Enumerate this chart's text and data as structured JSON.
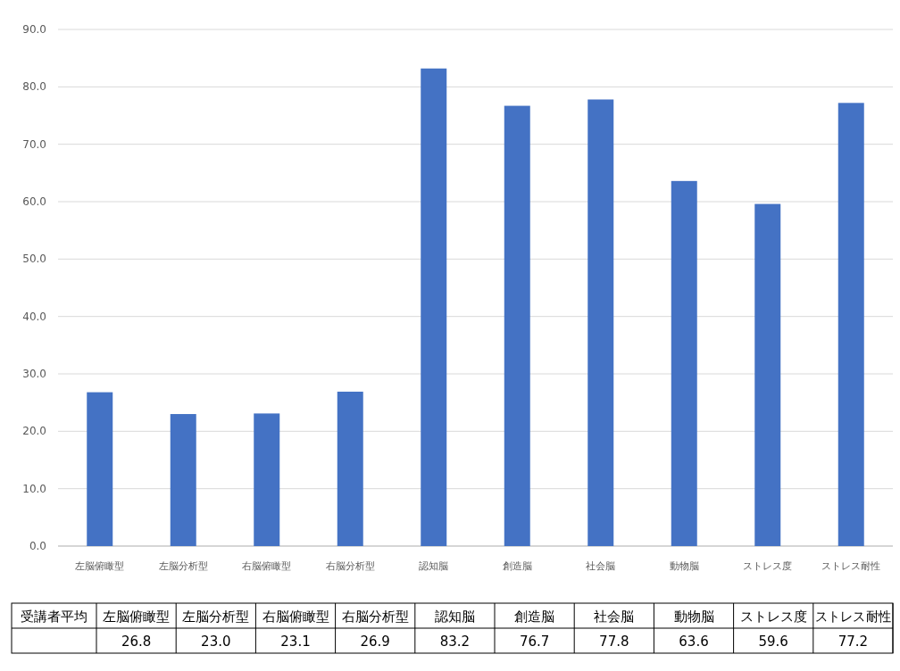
{
  "chart_data": {
    "type": "bar",
    "categories": [
      "左脳俯瞰型",
      "左脳分析型",
      "右脳俯瞰型",
      "右脳分析型",
      "認知脳",
      "創造脳",
      "社会脳",
      "動物脳",
      "ストレス度",
      "ストレス耐性"
    ],
    "series": [
      {
        "name": "受講者平均",
        "color": "#4472c4",
        "values": [
          26.8,
          23.0,
          23.1,
          26.9,
          83.2,
          76.7,
          77.8,
          63.6,
          59.6,
          77.2
        ]
      }
    ],
    "value_labels": [
      "26.8",
      "23.0",
      "23.1",
      "26.9",
      "83.2",
      "76.7",
      "77.8",
      "63.6",
      "59.6",
      "77.2"
    ],
    "ylim": [
      0,
      90
    ],
    "yticks": [
      {
        "value": 0,
        "label": "0.0"
      },
      {
        "value": 10,
        "label": "10.0"
      },
      {
        "value": 20,
        "label": "20.0"
      },
      {
        "value": 30,
        "label": "30.0"
      },
      {
        "value": 40,
        "label": "40.0"
      },
      {
        "value": 50,
        "label": "50.0"
      },
      {
        "value": 60,
        "label": "60.0"
      },
      {
        "value": 70,
        "label": "70.0"
      },
      {
        "value": 80,
        "label": "80.0"
      },
      {
        "value": 90,
        "label": "90.0"
      }
    ],
    "grid": "y",
    "legend": false
  }
}
